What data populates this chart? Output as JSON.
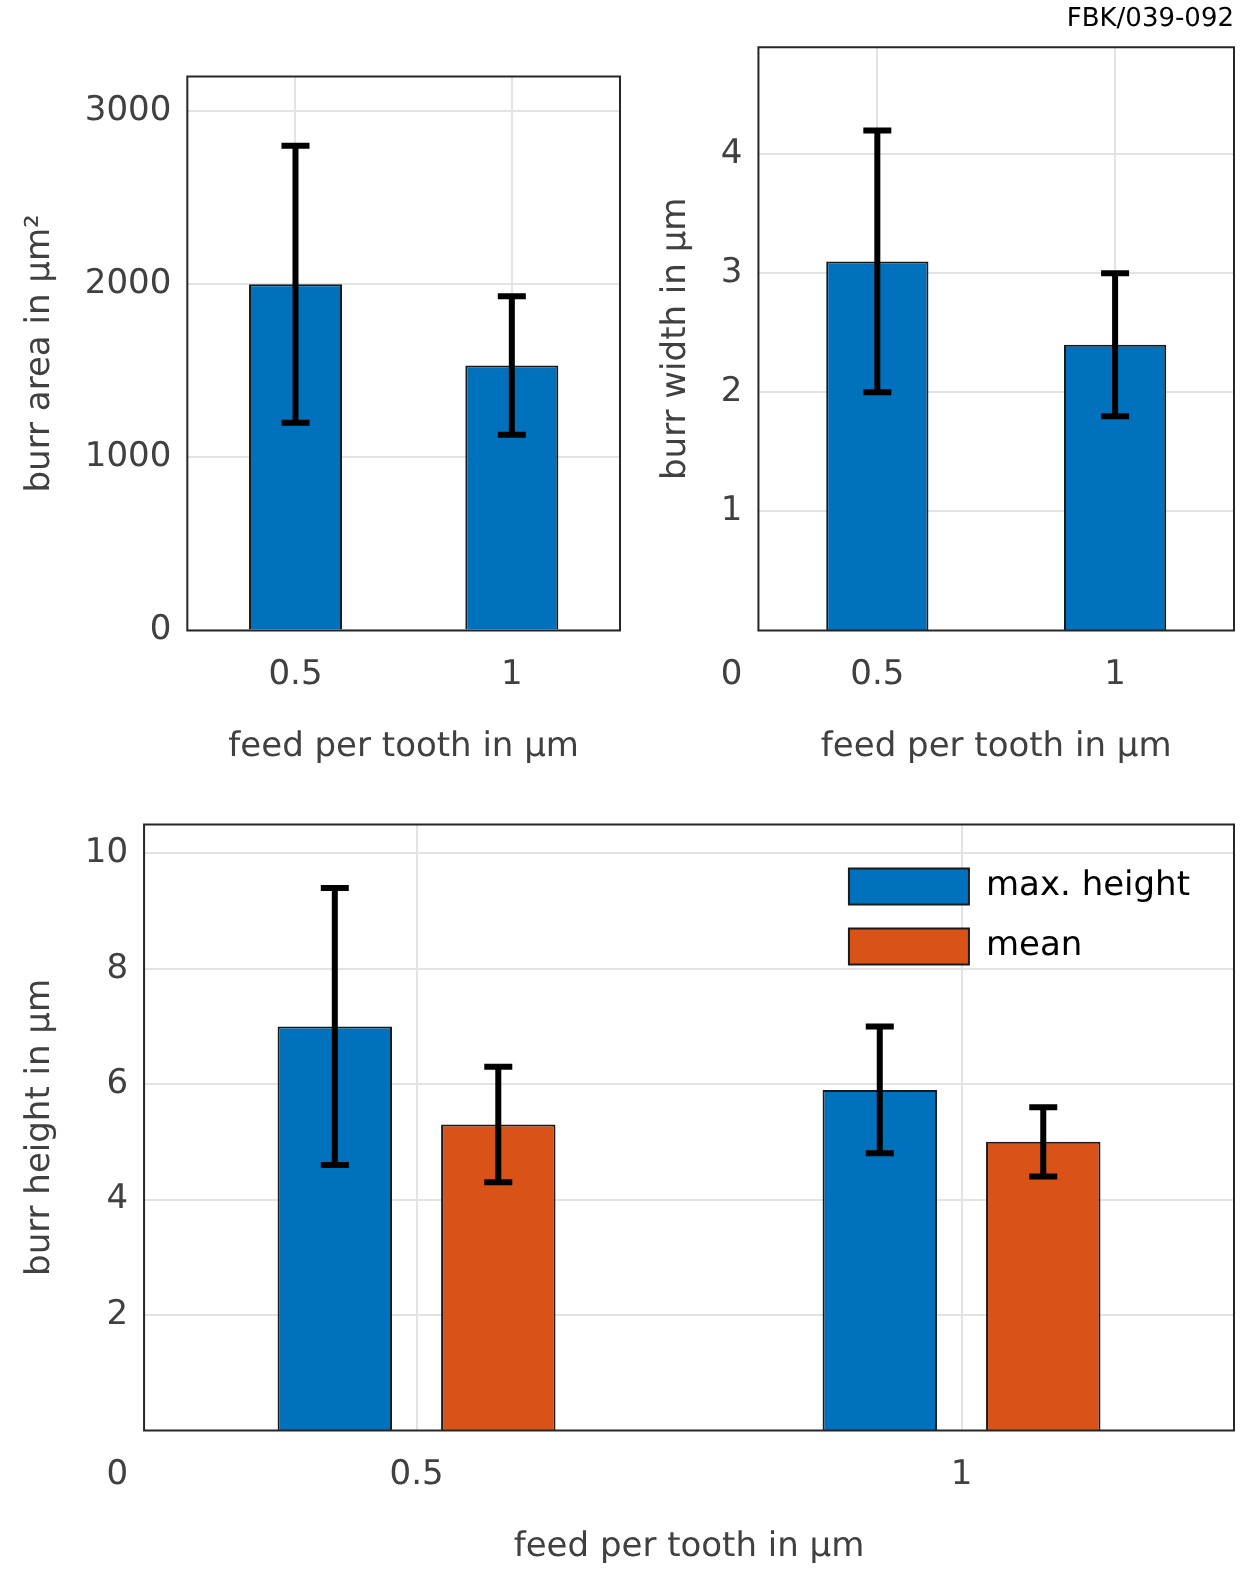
{
  "chart_data": [
    {
      "type": "bar",
      "categories": [
        "0.5",
        "1"
      ],
      "values": [
        2000,
        1530
      ],
      "errors": [
        800,
        400
      ],
      "color": "#0072bd",
      "ylim": [
        0,
        3200
      ],
      "yticks": [
        0,
        1000,
        2000,
        3000
      ],
      "ylabel": "burr area in µm²",
      "xlabel": "feed per tooth in µm",
      "grid": true
    },
    {
      "type": "bar",
      "title": "FBK/039-092",
      "categories": [
        "0.5",
        "1"
      ],
      "values": [
        3.1,
        2.4
      ],
      "errors": [
        1.1,
        0.6
      ],
      "color": "#0072bd",
      "ylim": [
        0,
        4.9
      ],
      "yticks": [
        1,
        2,
        3,
        4
      ],
      "ylabel": "burr width in µm",
      "xlabel": "feed per tooth in µm",
      "grid": true,
      "annotations": [
        "0"
      ]
    },
    {
      "type": "bar",
      "categories": [
        "0.5",
        "1"
      ],
      "series": [
        {
          "name": "max. height",
          "color": "#0072bd",
          "values": [
            7.0,
            5.9
          ],
          "errors": [
            2.4,
            1.1
          ]
        },
        {
          "name": "mean",
          "color": "#d95319",
          "values": [
            5.3,
            5.0
          ],
          "errors": [
            1.0,
            0.6
          ]
        }
      ],
      "ylim": [
        0,
        10.5
      ],
      "yticks": [
        2,
        4,
        6,
        8,
        10
      ],
      "ylabel": "burr height in µm",
      "xlabel": "feed per tooth in µm",
      "grid": true,
      "legend": "top right",
      "annotations": [
        "0"
      ]
    }
  ]
}
